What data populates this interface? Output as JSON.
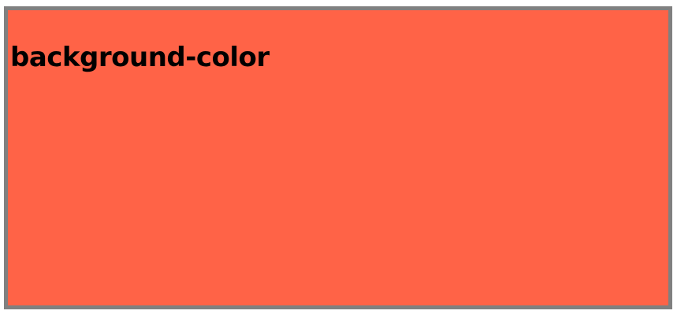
{
  "demo": {
    "heading": "background-color",
    "background": "#ff6347",
    "border_color": "#808080"
  }
}
